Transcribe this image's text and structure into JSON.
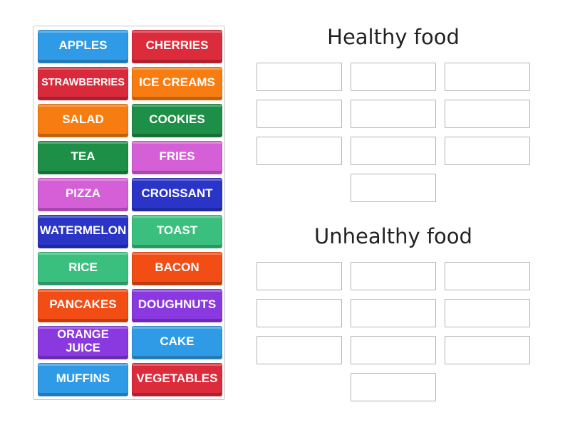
{
  "tiles": [
    {
      "label": "APPLES",
      "color": "#2f9be6"
    },
    {
      "label": "CHERRIES",
      "color": "#dc2b3b"
    },
    {
      "label": "STRAWBERRIES",
      "color": "#d92a3c"
    },
    {
      "label": "ICE CREAMS",
      "color": "#f77d12"
    },
    {
      "label": "SALAD",
      "color": "#f77d12"
    },
    {
      "label": "COOKIES",
      "color": "#1e8f46"
    },
    {
      "label": "TEA",
      "color": "#1e8f46"
    },
    {
      "label": "FRIES",
      "color": "#d45fd6"
    },
    {
      "label": "PIZZA",
      "color": "#d45fd6"
    },
    {
      "label": "CROISSANT",
      "color": "#2a35c7"
    },
    {
      "label": "WATERMELON",
      "color": "#2a35c7"
    },
    {
      "label": "TOAST",
      "color": "#3bbf7f"
    },
    {
      "label": "RICE",
      "color": "#3bbf7f"
    },
    {
      "label": "BACON",
      "color": "#f24d14"
    },
    {
      "label": "PANCAKES",
      "color": "#f24d14"
    },
    {
      "label": "DOUGHNUTS",
      "color": "#8a38e0"
    },
    {
      "label": "ORANGE JUICE",
      "color": "#8a38e0"
    },
    {
      "label": "CAKE",
      "color": "#2f9be6"
    },
    {
      "label": "MUFFINS",
      "color": "#2f9be6"
    },
    {
      "label": "VEGETABLES",
      "color": "#dc2b3b"
    }
  ],
  "groups": [
    {
      "title": "Healthy food"
    },
    {
      "title": "Unhealthy food"
    }
  ]
}
